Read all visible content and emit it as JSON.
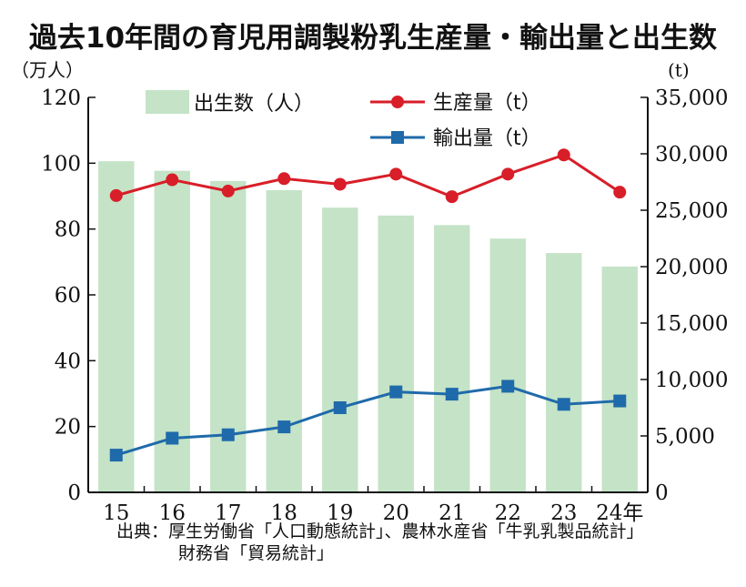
{
  "title": "過去10年間の育児用調製粉乳生産量・輸出量と出生数",
  "left_unit": "（万人）",
  "right_unit": "(t)",
  "legend": {
    "births": "出生数（人）",
    "production": "生産量（t）",
    "exports": "輸出量（t）"
  },
  "source_line1": "出典：厚生労働省「人口動態統計」、農林水産省「牛乳乳製品統計」",
  "source_line2": "財務省「貿易統計」",
  "colors": {
    "bars": "#c4e3c7",
    "production": "#d81e28",
    "exports": "#1f6aaa",
    "axis": "#111111"
  },
  "chart_data": {
    "type": "bar+line",
    "categories": [
      "15",
      "16",
      "17",
      "18",
      "19",
      "20",
      "21",
      "22",
      "23",
      "24年"
    ],
    "left_axis": {
      "label": "（万人）",
      "ylim": [
        0,
        120
      ],
      "ticks": [
        0,
        20,
        40,
        60,
        80,
        100,
        120
      ]
    },
    "right_axis": {
      "label": "(t)",
      "ylim": [
        0,
        35000
      ],
      "ticks": [
        "0",
        "5,000",
        "10,000",
        "15,000",
        "20,000",
        "25,000",
        "30,000",
        "35,000"
      ]
    },
    "series": [
      {
        "name": "出生数（人）",
        "type": "bar",
        "axis": "left",
        "values": [
          100.6,
          97.7,
          94.6,
          91.8,
          86.5,
          84.1,
          81.2,
          77.1,
          72.7,
          68.6
        ]
      },
      {
        "name": "生産量（t）",
        "type": "line",
        "axis": "right",
        "values": [
          26300,
          27700,
          26700,
          27800,
          27300,
          28200,
          26200,
          28200,
          29900,
          26600
        ]
      },
      {
        "name": "輸出量（t）",
        "type": "line",
        "axis": "right",
        "values": [
          3300,
          4800,
          5100,
          5800,
          7500,
          8900,
          8700,
          9400,
          7800,
          8100
        ]
      }
    ],
    "grid": false,
    "legend_position": "top"
  }
}
